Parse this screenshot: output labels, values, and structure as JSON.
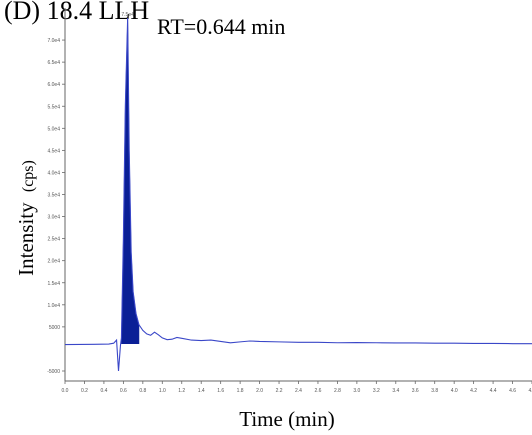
{
  "figure": {
    "panel_label": "(D) 18.4 LLH",
    "annotation": "RT=0.644 min",
    "ylabel_main": "Intensity",
    "ylabel_unit": "(cps)",
    "xlabel": "Time (min)"
  },
  "chart_data": {
    "type": "line",
    "title": "(D) 18.4 LLH",
    "xlabel": "Time (min)",
    "ylabel": "Intensity (cps)",
    "xlim": [
      0.0,
      4.8
    ],
    "ylim": [
      -5000,
      75000
    ],
    "peak_label": "7.5e4",
    "annotation": "RT=0.644 min",
    "x_ticks": [
      "0.0",
      "0.2",
      "0.4",
      "0.6",
      "0.8",
      "1.0",
      "1.2",
      "1.4",
      "1.6",
      "1.8",
      "2.0",
      "2.2",
      "2.4",
      "2.6",
      "2.8",
      "3.0",
      "3.2",
      "3.4",
      "3.6",
      "3.8",
      "4.0",
      "4.2",
      "4.4",
      "4.6",
      "4.8"
    ],
    "y_ticks": [
      {
        "label": "-5000",
        "value": -5000
      },
      {
        "label": "5000",
        "value": 5000
      },
      {
        "label": "1.0e4",
        "value": 10000
      },
      {
        "label": "1.5e4",
        "value": 15000
      },
      {
        "label": "2.0e4",
        "value": 20000
      },
      {
        "label": "2.5e4",
        "value": 25000
      },
      {
        "label": "3.0e4",
        "value": 30000
      },
      {
        "label": "3.5e4",
        "value": 35000
      },
      {
        "label": "4.0e4",
        "value": 40000
      },
      {
        "label": "4.5e4",
        "value": 45000
      },
      {
        "label": "5.0e4",
        "value": 50000
      },
      {
        "label": "5.5e4",
        "value": 55000
      },
      {
        "label": "6.0e4",
        "value": 60000
      },
      {
        "label": "6.5e4",
        "value": 65000
      },
      {
        "label": "7.0e4",
        "value": 70000
      }
    ],
    "series": [
      {
        "points": [
          [
            0.0,
            1000
          ],
          [
            0.3,
            1050
          ],
          [
            0.45,
            1100
          ],
          [
            0.5,
            1300
          ],
          [
            0.53,
            2000
          ],
          [
            0.55,
            -5000
          ],
          [
            0.57,
            800
          ],
          [
            0.58,
            2500
          ],
          [
            0.6,
            25000
          ],
          [
            0.62,
            55000
          ],
          [
            0.644,
            75000
          ],
          [
            0.66,
            45000
          ],
          [
            0.68,
            22000
          ],
          [
            0.7,
            13000
          ],
          [
            0.73,
            8000
          ],
          [
            0.76,
            5500
          ],
          [
            0.8,
            4200
          ],
          [
            0.84,
            3400
          ],
          [
            0.88,
            3100
          ],
          [
            0.92,
            3800
          ],
          [
            0.96,
            3200
          ],
          [
            1.0,
            2500
          ],
          [
            1.05,
            2100
          ],
          [
            1.1,
            2200
          ],
          [
            1.15,
            2600
          ],
          [
            1.2,
            2400
          ],
          [
            1.3,
            2000
          ],
          [
            1.4,
            1900
          ],
          [
            1.5,
            2000
          ],
          [
            1.6,
            1700
          ],
          [
            1.7,
            1400
          ],
          [
            1.8,
            1600
          ],
          [
            1.9,
            1800
          ],
          [
            2.0,
            1700
          ],
          [
            2.2,
            1600
          ],
          [
            2.4,
            1500
          ],
          [
            2.6,
            1500
          ],
          [
            2.8,
            1400
          ],
          [
            3.0,
            1450
          ],
          [
            3.2,
            1400
          ],
          [
            3.4,
            1350
          ],
          [
            3.6,
            1350
          ],
          [
            3.8,
            1300
          ],
          [
            4.0,
            1300
          ],
          [
            4.2,
            1250
          ],
          [
            4.4,
            1250
          ],
          [
            4.6,
            1200
          ],
          [
            4.8,
            1200
          ]
        ]
      }
    ],
    "filled_peak_range": [
      0.58,
      0.76
    ],
    "colors": {
      "trace": "#3a47c8",
      "peak": "#0a1f96"
    }
  }
}
